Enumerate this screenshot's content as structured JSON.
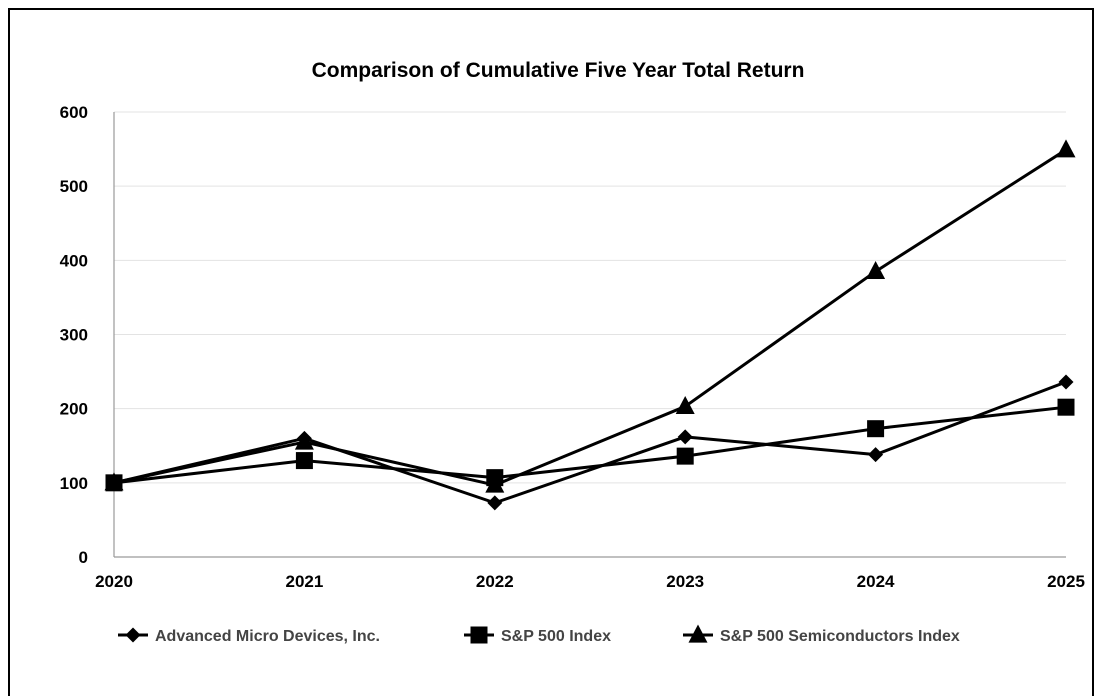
{
  "chart_data": {
    "type": "line",
    "title": "Comparison of Cumulative Five Year Total Return",
    "categories": [
      "2020",
      "2021",
      "2022",
      "2023",
      "2024",
      "2025"
    ],
    "ylim": [
      0,
      600
    ],
    "yticks": [
      0,
      100,
      200,
      300,
      400,
      500,
      600
    ],
    "grid": true,
    "legend_position": "bottom",
    "series": [
      {
        "name": "Advanced Micro Devices, Inc.",
        "marker": "diamond",
        "values": [
          100,
          160,
          73,
          162,
          138,
          236
        ]
      },
      {
        "name": "S&P 500 Index",
        "marker": "square",
        "values": [
          100,
          130,
          107,
          136,
          173,
          202
        ]
      },
      {
        "name": "S&P 500 Semiconductors Index",
        "marker": "triangle",
        "values": [
          100,
          155,
          97,
          203,
          385,
          549
        ]
      }
    ],
    "colors": {
      "series": "#000000",
      "legend_text": "#444444",
      "grid": "#e3e3e3"
    }
  }
}
